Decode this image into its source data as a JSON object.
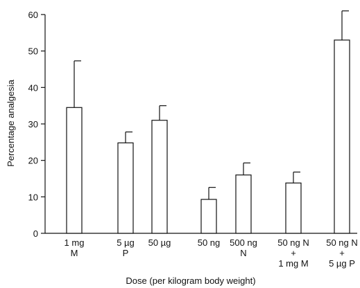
{
  "chart_data": {
    "type": "bar",
    "xlabel": "Dose  (per kilogram body weight)",
    "ylabel": "Percentage  analgesia",
    "ylim": [
      0,
      60
    ],
    "yticks": [
      0,
      10,
      20,
      30,
      40,
      50,
      60
    ],
    "grid": false,
    "error_bars": true,
    "bars": [
      {
        "label_lines": [
          "1 mg",
          "M"
        ],
        "value": 34.5,
        "error": 12.8
      },
      {
        "label_lines": [
          "5  µg",
          "P"
        ],
        "value": 24.8,
        "error": 3.0
      },
      {
        "label_lines": [
          "50 µg",
          ""
        ],
        "value": 31.0,
        "error": 4.0
      },
      {
        "label_lines": [
          "50 ng",
          ""
        ],
        "value": 9.3,
        "error": 3.3
      },
      {
        "label_lines": [
          "500  ng",
          "N"
        ],
        "value": 16.0,
        "error": 3.3
      },
      {
        "label_lines": [
          "50 ng N",
          "+",
          "1 mg M"
        ],
        "value": 13.8,
        "error": 3.0
      },
      {
        "label_lines": [
          "50 ng N",
          "+",
          "5 µg P"
        ],
        "value": 53.0,
        "error": 8.0
      }
    ]
  }
}
